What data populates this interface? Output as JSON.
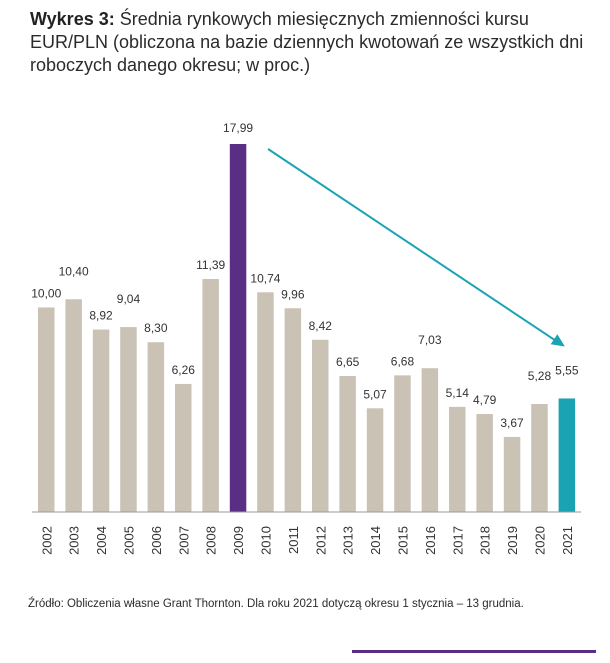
{
  "title": {
    "label": "Wykres 3:",
    "text": "Średnia rynkowych miesięcznych zmienności kursu EUR/PLN (obliczona na bazie dziennych kwotowań ze wszystkich dni roboczych danego okresu; w proc.)"
  },
  "source": "Źródło: Obliczenia własne Grant Thornton. Dla roku 2021 dotyczą okresu 1 stycznia – 13 grudnia.",
  "colors": {
    "default_bar": "#cbc2b6",
    "highlight_bar": "#5b2e86",
    "current_bar": "#1aa3b3",
    "trend_arrow": "#1aa3b3",
    "baseline": "#999999"
  },
  "chart_data": {
    "type": "bar",
    "title": "Średnia rynkowych miesięcznych zmienności kursu EUR/PLN",
    "xlabel": "",
    "ylabel": "w proc.",
    "ylim": [
      0,
      19
    ],
    "grid": false,
    "categories": [
      "2002",
      "2003",
      "2004",
      "2005",
      "2006",
      "2007",
      "2008",
      "2009",
      "2010",
      "2011",
      "2012",
      "2013",
      "2014",
      "2015",
      "2016",
      "2017",
      "2018",
      "2019",
      "2020",
      "2021"
    ],
    "values": [
      10.0,
      10.4,
      8.92,
      9.04,
      8.3,
      6.26,
      11.39,
      17.99,
      10.74,
      9.96,
      8.42,
      6.65,
      5.07,
      6.68,
      7.03,
      5.14,
      4.79,
      3.67,
      5.28,
      5.55
    ],
    "value_labels": [
      "10,00",
      "10,40",
      "8,92",
      "9,04",
      "8,30",
      "6,26",
      "11,39",
      "17,99",
      "10,74",
      "9,96",
      "8,42",
      "6,65",
      "5,07",
      "6,68",
      "7,03",
      "5,14",
      "4,79",
      "3,67",
      "5,28",
      "5,55"
    ],
    "highlight": [
      "2009"
    ],
    "current": [
      "2021"
    ],
    "annotations": [
      {
        "type": "trend-arrow",
        "from": "2009",
        "to": "2021"
      }
    ]
  }
}
